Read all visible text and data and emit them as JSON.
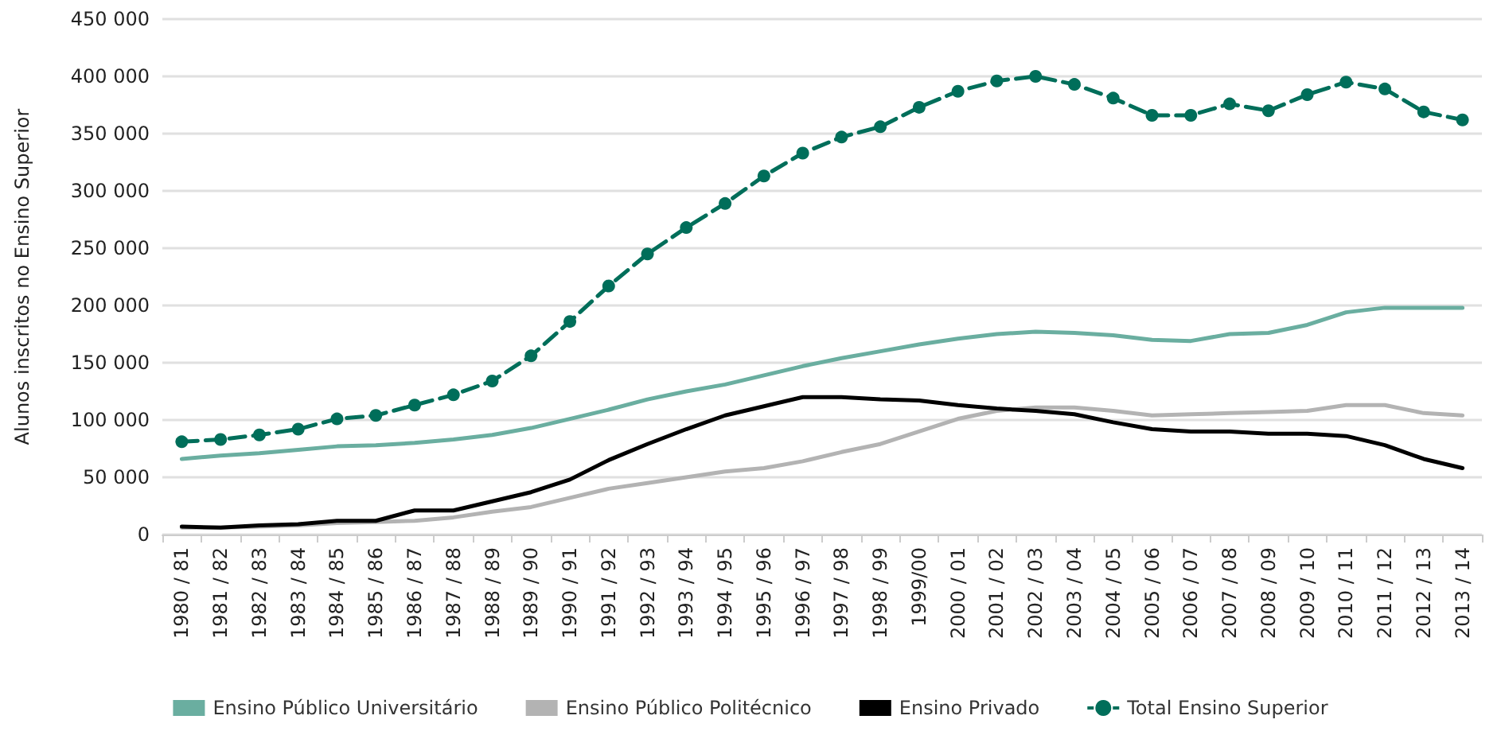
{
  "chart_data": {
    "type": "line",
    "ylabel": "Alunos inscritos no Ensino Superior",
    "categories": [
      "1980 / 81",
      "1981 / 82",
      "1982 / 83",
      "1983 / 84",
      "1984 / 85",
      "1985 / 86",
      "1986 / 87",
      "1987 / 88",
      "1988 / 89",
      "1989 / 90",
      "1990 / 91",
      "1991 / 92",
      "1992 / 93",
      "1993 / 94",
      "1994 / 95",
      "1995 / 96",
      "1996 / 97",
      "1997 / 98",
      "1998 / 99",
      "1999/00",
      "2000 / 01",
      "2001 / 02",
      "2002 / 03",
      "2003 / 04",
      "2004 / 05",
      "2005 / 06",
      "2006 / 07",
      "2007 / 08",
      "2008 / 09",
      "2009 / 10",
      "2010 / 11",
      "2011 / 12",
      "2012 / 13",
      "2013 / 14"
    ],
    "series": [
      {
        "name": "Ensino Público Universitário",
        "color": "#6aaea0",
        "marker": "none",
        "line_style": "solid",
        "values": [
          66000,
          69000,
          71000,
          74000,
          77000,
          78000,
          80000,
          83000,
          87000,
          93000,
          101000,
          109000,
          118000,
          125000,
          131000,
          139000,
          147000,
          154000,
          160000,
          166000,
          171000,
          175000,
          177000,
          176000,
          174000,
          170000,
          169000,
          175000,
          176000,
          183000,
          194000,
          198000,
          198000,
          198000
        ]
      },
      {
        "name": "Ensino Público Politécnico",
        "color": "#b3b3b3",
        "marker": "none",
        "line_style": "solid",
        "values": [
          6000,
          6000,
          7000,
          8000,
          10000,
          11000,
          12000,
          15000,
          20000,
          24000,
          32000,
          40000,
          45000,
          50000,
          55000,
          58000,
          64000,
          72000,
          79000,
          90000,
          101000,
          108000,
          111000,
          111000,
          108000,
          104000,
          105000,
          106000,
          107000,
          108000,
          113000,
          113000,
          106000,
          104000
        ]
      },
      {
        "name": "Ensino Privado",
        "color": "#000000",
        "marker": "none",
        "line_style": "solid",
        "values": [
          7000,
          6000,
          8000,
          9000,
          12000,
          12000,
          21000,
          21000,
          29000,
          37000,
          48000,
          65000,
          79000,
          92000,
          104000,
          112000,
          120000,
          120000,
          118000,
          117000,
          113000,
          110000,
          108000,
          105000,
          98000,
          92000,
          90000,
          90000,
          88000,
          88000,
          86000,
          78000,
          66000,
          58000
        ]
      },
      {
        "name": "Total Ensino Superior",
        "color": "#006e5a",
        "marker": "circle",
        "line_style": "dashed",
        "values": [
          81000,
          83000,
          87000,
          92000,
          101000,
          104000,
          113000,
          122000,
          134000,
          156000,
          186000,
          217000,
          245000,
          268000,
          289000,
          313000,
          333000,
          347000,
          356000,
          373000,
          387000,
          396000,
          400000,
          393000,
          381000,
          366000,
          366000,
          376000,
          370000,
          384000,
          395000,
          389000,
          369000,
          362000
        ]
      }
    ],
    "ylim": [
      0,
      450000
    ],
    "yticks": [
      0,
      {
        "value": 50000,
        "label": "50 000"
      },
      {
        "value": 100000,
        "label": "100 000"
      },
      {
        "value": 150000,
        "label": "150 000"
      },
      {
        "value": 200000,
        "label": "200 000"
      },
      {
        "value": 250000,
        "label": "250 000"
      },
      {
        "value": 300000,
        "label": "300 000"
      },
      {
        "value": 350000,
        "label": "350 000"
      },
      {
        "value": 400000,
        "label": "400 000"
      },
      {
        "value": 450000,
        "label": "450 000"
      }
    ],
    "grid": "y",
    "legend": "bottom"
  }
}
